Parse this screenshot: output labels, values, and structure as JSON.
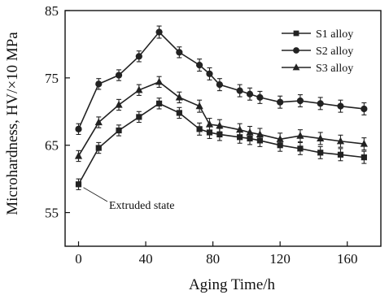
{
  "chart_data": {
    "type": "line",
    "xlabel": "Aging Time/h",
    "ylabel": "Microhardness, HV/×10 MPa",
    "xlim": [
      -8,
      180
    ],
    "ylim": [
      50,
      85
    ],
    "xticks": [
      0,
      40,
      80,
      120,
      160
    ],
    "yticks": [
      55,
      65,
      75,
      85
    ],
    "grid": false,
    "legend_position": "top-right",
    "x": [
      0,
      12,
      24,
      36,
      48,
      60,
      72,
      78,
      84,
      96,
      102,
      108,
      120,
      132,
      144,
      156,
      170
    ],
    "series": [
      {
        "name": "S1 alloy",
        "marker": "square",
        "values": [
          59.2,
          64.6,
          67.2,
          69.2,
          71.2,
          69.8,
          67.4,
          66.9,
          66.6,
          66.2,
          66.0,
          65.7,
          65.0,
          64.5,
          63.9,
          63.6,
          63.2
        ],
        "errors": [
          0.8,
          0.8,
          0.8,
          0.8,
          0.8,
          0.8,
          0.9,
          0.9,
          0.9,
          0.9,
          0.9,
          0.9,
          0.9,
          0.9,
          0.9,
          0.9,
          0.9
        ]
      },
      {
        "name": "S2 alloy",
        "marker": "circle",
        "values": [
          67.4,
          74.1,
          75.4,
          78.2,
          81.8,
          78.8,
          76.9,
          75.6,
          74.0,
          73.1,
          72.6,
          72.1,
          71.4,
          71.6,
          71.2,
          70.8,
          70.4
        ],
        "errors": [
          0.8,
          0.8,
          0.8,
          0.8,
          0.9,
          0.8,
          0.9,
          0.9,
          0.9,
          0.9,
          0.9,
          0.9,
          0.9,
          0.9,
          0.9,
          0.9,
          0.9
        ]
      },
      {
        "name": "S3 alloy",
        "marker": "triangle",
        "values": [
          63.4,
          68.4,
          71.0,
          73.2,
          74.4,
          72.1,
          70.8,
          68.1,
          67.9,
          67.3,
          66.9,
          66.6,
          65.9,
          66.4,
          66.0,
          65.6,
          65.2
        ],
        "errors": [
          0.8,
          0.8,
          0.8,
          0.8,
          0.8,
          0.8,
          0.9,
          0.9,
          0.9,
          0.9,
          0.9,
          0.9,
          0.9,
          0.9,
          0.9,
          0.9,
          0.9
        ]
      }
    ],
    "annotations": [
      {
        "text": "Extruded state",
        "x": 0,
        "y": 59.2
      }
    ]
  },
  "colors": {
    "line": "#222222",
    "axis": "#111111",
    "background": "#ffffff"
  }
}
